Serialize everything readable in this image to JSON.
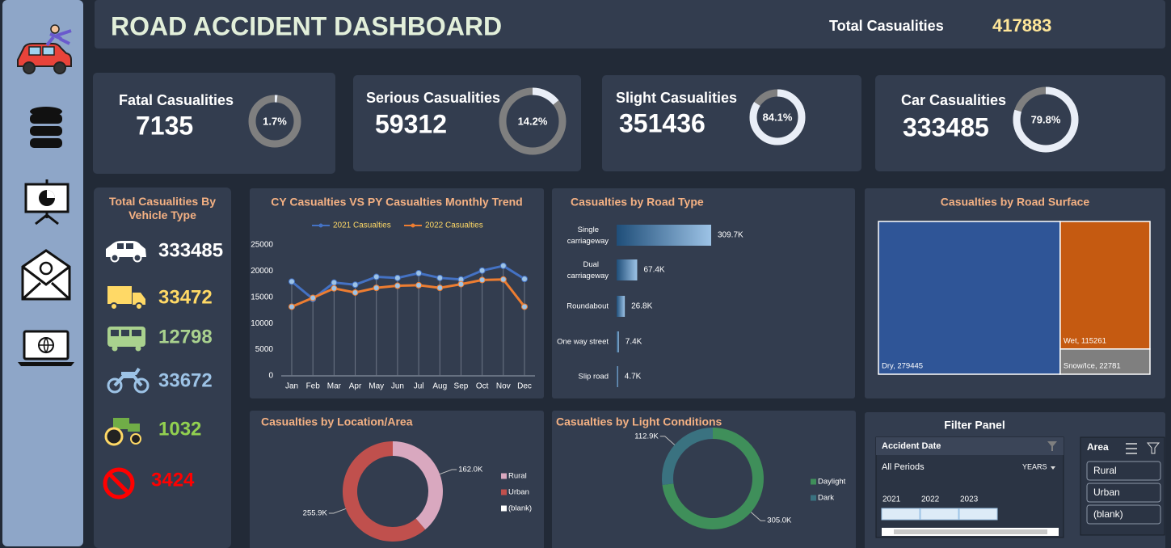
{
  "header": {
    "title": "ROAD ACCIDENT DASHBOARD",
    "total_label": "Total Casualities",
    "total_value": 417883
  },
  "kpis": [
    {
      "label": "Fatal Casualities",
      "value": 7135,
      "percent": 1.7,
      "percent_label": "1.7%"
    },
    {
      "label": "Serious Casualities",
      "value": 59312,
      "percent": 14.2,
      "percent_label": "14.2%"
    },
    {
      "label": "Slight Casualities",
      "value": 351436,
      "percent": 84.1,
      "percent_label": "84.1%"
    },
    {
      "label": "Car Casualities",
      "value": 333485,
      "percent": 79.8,
      "percent_label": "79.8%"
    }
  ],
  "vehicles": {
    "title": "Total Casualities By Vehicle Type",
    "values": [
      333485,
      33472,
      12798,
      33672,
      1032,
      3424
    ],
    "colors": [
      "#ffffff",
      "#ffd966",
      "#a9d18e",
      "#9dc3e6",
      "#92d050",
      "#ff0000"
    ]
  },
  "chart_data": [
    {
      "type": "line",
      "title": "CY Casualties VS PY Casualties Monthly Trend",
      "categories": [
        "Jan",
        "Feb",
        "Mar",
        "Apr",
        "May",
        "Jun",
        "Jul",
        "Aug",
        "Sep",
        "Oct",
        "Nov",
        "Dec"
      ],
      "series": [
        {
          "name": "2021 Casualties",
          "color": "#4472c4",
          "values": [
            18000,
            14700,
            17800,
            17400,
            18900,
            18700,
            19600,
            18700,
            18400,
            20100,
            21000,
            18500
          ]
        },
        {
          "name": "2022 Casualties",
          "color": "#ed7d31",
          "values": [
            13200,
            14900,
            16700,
            15900,
            16800,
            17200,
            17300,
            16800,
            17500,
            18300,
            18400,
            13200
          ]
        }
      ],
      "ylim": [
        0,
        25000
      ],
      "yticks": [
        0,
        5000,
        10000,
        15000,
        20000,
        25000
      ],
      "legend": "top"
    },
    {
      "type": "hbar",
      "title": "Casualties by Road Type",
      "categories": [
        "Single carriageway",
        "Dual carriageway",
        "Roundabout",
        "One way street",
        "Slip road"
      ],
      "values": [
        309700,
        67400,
        26800,
        7400,
        4700
      ],
      "value_labels": [
        "309.7K",
        "67.4K",
        "26.8K",
        "7.4K",
        "4.7K"
      ],
      "color": "#2e75b6"
    },
    {
      "type": "treemap",
      "title": "Casualties by Road Surface",
      "categories": [
        "Dry",
        "Wet",
        "Snow/Ice"
      ],
      "values": [
        279445,
        115261,
        22781
      ],
      "value_labels": [
        "Dry, 279445",
        "Wet, 115261",
        "Snow/Ice, 22781"
      ],
      "colors": [
        "#2f5597",
        "#c55a11",
        "#7f7f7f"
      ]
    },
    {
      "type": "donut",
      "title": "Casualties by Location/Area",
      "categories": [
        "Rural",
        "Urban",
        "(blank)"
      ],
      "values": [
        162000,
        255900,
        0
      ],
      "value_labels": [
        "162.0K",
        "255.9K",
        null
      ],
      "colors": [
        "#d9a8bf",
        "#c0504d",
        "#ffffff"
      ],
      "legend": "right"
    },
    {
      "type": "donut",
      "title": "Casualties by Light Conditions",
      "categories": [
        "Daylight",
        "Dark"
      ],
      "values": [
        305000,
        112900
      ],
      "value_labels": [
        "305.0K",
        "112.9K"
      ],
      "colors": [
        "#3f8f5a",
        "#3a7280"
      ],
      "legend": "right"
    }
  ],
  "filter": {
    "title": "Filter Panel",
    "date": {
      "title": "Accident Date",
      "period": "All Periods",
      "unit": "YEARS",
      "years": [
        "2021",
        "2022",
        "2023"
      ]
    },
    "area": {
      "title": "Area",
      "items": [
        "Rural",
        "Urban",
        "(blank)"
      ]
    }
  }
}
